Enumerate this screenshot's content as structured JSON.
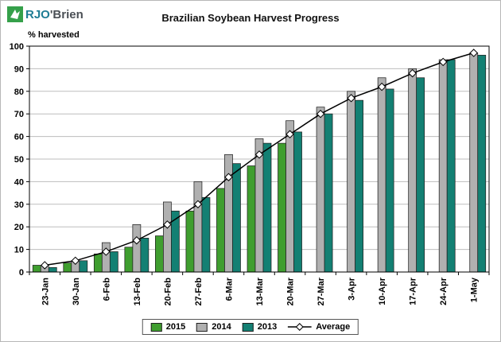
{
  "logo": {
    "brand_rjo": "RJO",
    "brand_obrien": "'Brien"
  },
  "title": "Brazilian Soybean Harvest Progress",
  "y_axis_label": "% harvested",
  "chart_data": {
    "type": "bar",
    "title": "Brazilian Soybean Harvest Progress",
    "xlabel": "",
    "ylabel": "% harvested",
    "ylim": [
      0,
      100
    ],
    "ytick_interval": 10,
    "grid": true,
    "legend_position": "bottom",
    "categories": [
      "23-Jan",
      "30-Jan",
      "6-Feb",
      "13-Feb",
      "20-Feb",
      "27-Feb",
      "6-Mar",
      "13-Mar",
      "20-Mar",
      "27-Mar",
      "3-Apr",
      "10-Apr",
      "17-Apr",
      "24-Apr",
      "1-May"
    ],
    "series": [
      {
        "name": "2015",
        "type": "bar",
        "color": "#3f9e2f",
        "values": [
          3,
          4,
          8,
          11,
          16,
          27,
          37,
          47,
          57,
          null,
          null,
          null,
          null,
          null,
          null
        ]
      },
      {
        "name": "2014",
        "type": "bar",
        "color": "#b0b0b0",
        "values": [
          3,
          5,
          13,
          21,
          31,
          40,
          52,
          59,
          67,
          73,
          80,
          86,
          90,
          94,
          97
        ]
      },
      {
        "name": "2013",
        "type": "bar",
        "color": "#138073",
        "values": [
          2,
          5,
          9,
          15,
          27,
          33,
          48,
          57,
          62,
          70,
          76,
          81,
          86,
          94,
          96
        ]
      },
      {
        "name": "Average",
        "type": "line",
        "color": "#000000",
        "marker": "diamond",
        "values": [
          3,
          5,
          9,
          14,
          21,
          30,
          42,
          52,
          61,
          70,
          77,
          82,
          88,
          93,
          97
        ]
      }
    ]
  }
}
